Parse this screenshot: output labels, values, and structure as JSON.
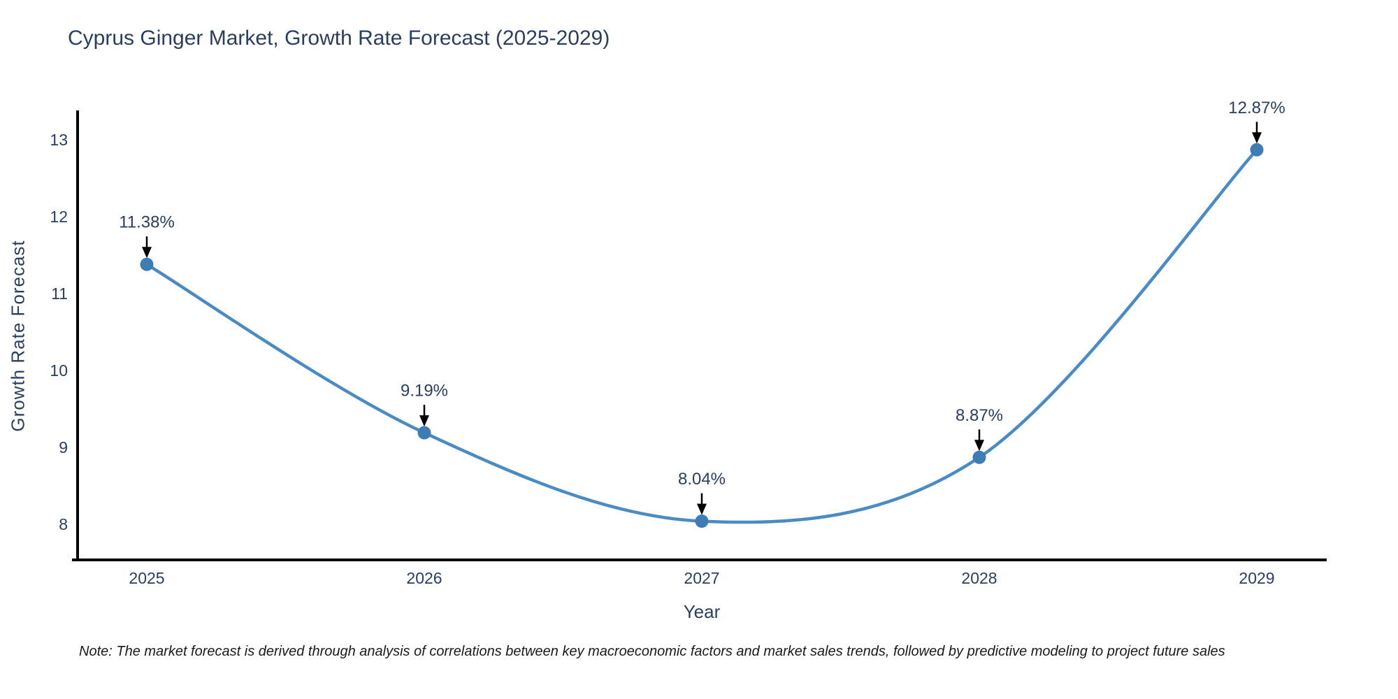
{
  "chart_data": {
    "type": "line",
    "title": "Cyprus Ginger Market, Growth Rate Forecast (2025-2029)",
    "xlabel": "Year",
    "ylabel": "Growth Rate Forecast",
    "categories": [
      "2025",
      "2026",
      "2027",
      "2028",
      "2029"
    ],
    "values": [
      11.38,
      9.19,
      8.04,
      8.87,
      12.87
    ],
    "point_labels": [
      "11.38%",
      "9.19%",
      "8.04%",
      "8.87%",
      "12.87%"
    ],
    "yticks": [
      8,
      9,
      10,
      11,
      12,
      13
    ],
    "ylim": [
      7.55,
      13.45
    ],
    "line_shape": "spline",
    "grid": false,
    "legend": "none",
    "colors": {
      "line": "#4a8bc4",
      "marker": "#3e7cb6",
      "axis": "#000000",
      "text": "#2a3f5f",
      "arrow": "#000000",
      "note_text": "#1a1a1a",
      "background": "#ffffff"
    },
    "note": "Note: The market forecast is derived through analysis of correlations between key macroeconomic factors and market sales trends, followed by predictive modeling to project future sales"
  }
}
